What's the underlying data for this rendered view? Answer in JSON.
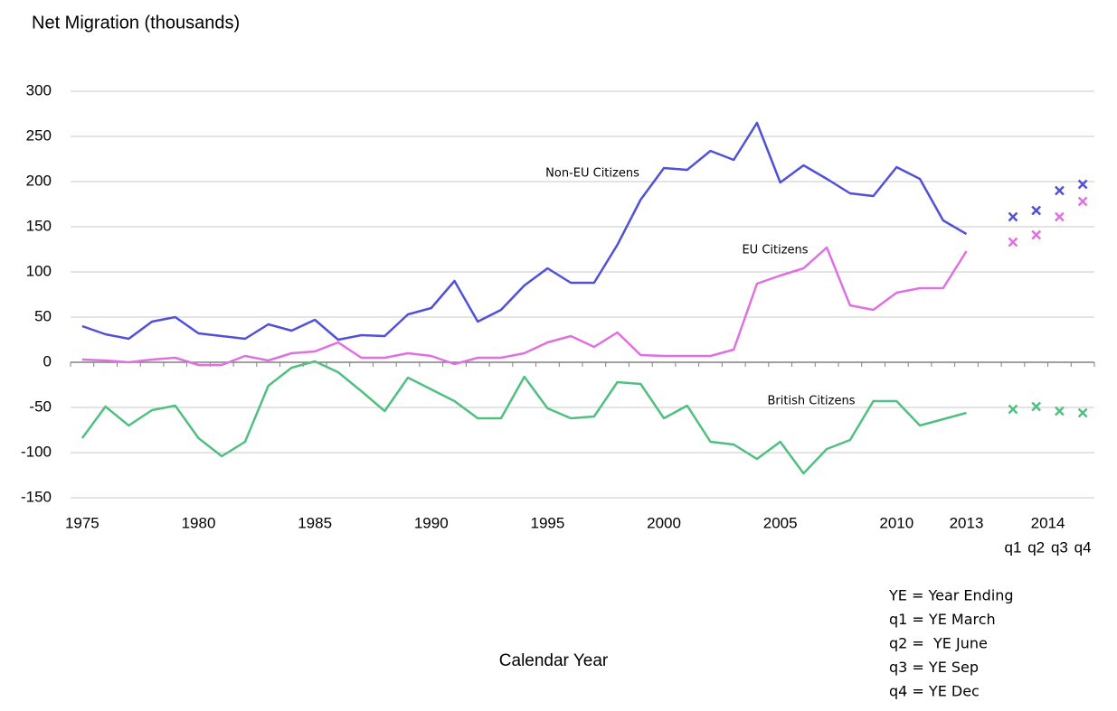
{
  "chart_data": {
    "type": "line",
    "title": "Net Migration (thousands)",
    "x_label": "Calendar Year",
    "x_group_label": "2014",
    "categories": [
      "1975",
      null,
      null,
      null,
      null,
      "1980",
      null,
      null,
      null,
      null,
      "1985",
      null,
      null,
      null,
      null,
      "1990",
      null,
      null,
      null,
      null,
      "1995",
      null,
      null,
      null,
      null,
      "2000",
      null,
      null,
      null,
      null,
      "2005",
      null,
      null,
      null,
      null,
      "2010",
      null,
      null,
      "2013",
      null,
      "q1",
      "q2",
      "q3",
      "q4"
    ],
    "series": [
      {
        "name": "Non-EU Citizens",
        "color": "#5050d8",
        "values": [
          40,
          31,
          26,
          45,
          50,
          32,
          29,
          26,
          42,
          35,
          47,
          25,
          30,
          29,
          53,
          60,
          90,
          45,
          58,
          85,
          104,
          88,
          88,
          130,
          180,
          215,
          213,
          234,
          224,
          265,
          199,
          218,
          203,
          187,
          184,
          216,
          203,
          157,
          142,
          null,
          null,
          null,
          null,
          null
        ],
        "markers": [
          null,
          null,
          null,
          null,
          null,
          null,
          null,
          null,
          null,
          null,
          null,
          null,
          null,
          null,
          null,
          null,
          null,
          null,
          null,
          null,
          null,
          null,
          null,
          null,
          null,
          null,
          null,
          null,
          null,
          null,
          null,
          null,
          null,
          null,
          null,
          null,
          null,
          null,
          null,
          null,
          161,
          168,
          190,
          197
        ]
      },
      {
        "name": "EU Citizens",
        "color": "#e070e0",
        "values": [
          3,
          2,
          0,
          3,
          5,
          -3,
          -3,
          7,
          2,
          10,
          12,
          22,
          5,
          5,
          10,
          7,
          -2,
          5,
          5,
          10,
          22,
          29,
          17,
          33,
          8,
          7,
          7,
          7,
          14,
          87,
          96,
          104,
          127,
          63,
          58,
          77,
          82,
          82,
          123,
          null,
          null,
          null,
          null,
          null
        ],
        "markers": [
          null,
          null,
          null,
          null,
          null,
          null,
          null,
          null,
          null,
          null,
          null,
          null,
          null,
          null,
          null,
          null,
          null,
          null,
          null,
          null,
          null,
          null,
          null,
          null,
          null,
          null,
          null,
          null,
          null,
          null,
          null,
          null,
          null,
          null,
          null,
          null,
          null,
          null,
          null,
          null,
          133,
          141,
          161,
          178
        ]
      },
      {
        "name": "British Citizens",
        "color": "#50c080",
        "values": [
          -84,
          -49,
          -70,
          -53,
          -48,
          -84,
          -104,
          -88,
          -26,
          -6,
          1,
          -11,
          -32,
          -54,
          -17,
          -30,
          -43,
          -62,
          -62,
          -16,
          -51,
          -62,
          -60,
          -22,
          -24,
          -62,
          -48,
          -88,
          -91,
          -107,
          -88,
          -123,
          -96,
          -86,
          -43,
          -43,
          -70,
          -63,
          -56,
          null,
          null,
          null,
          null,
          null
        ],
        "markers": [
          null,
          null,
          null,
          null,
          null,
          null,
          null,
          null,
          null,
          null,
          null,
          null,
          null,
          null,
          null,
          null,
          null,
          null,
          null,
          null,
          null,
          null,
          null,
          null,
          null,
          null,
          null,
          null,
          null,
          null,
          null,
          null,
          null,
          null,
          null,
          null,
          null,
          null,
          null,
          null,
          -52,
          -49,
          -54,
          -56
        ]
      }
    ],
    "ylim": [
      -150,
      300
    ],
    "yticks": [
      -150,
      -100,
      -50,
      0,
      50,
      100,
      150,
      200,
      250,
      300
    ],
    "grid": true,
    "notes": [
      "YE = Year Ending",
      "q1 = YE March",
      "q2 =  YE June",
      "q3 = YE Sep",
      "q4 = YE Dec"
    ]
  }
}
